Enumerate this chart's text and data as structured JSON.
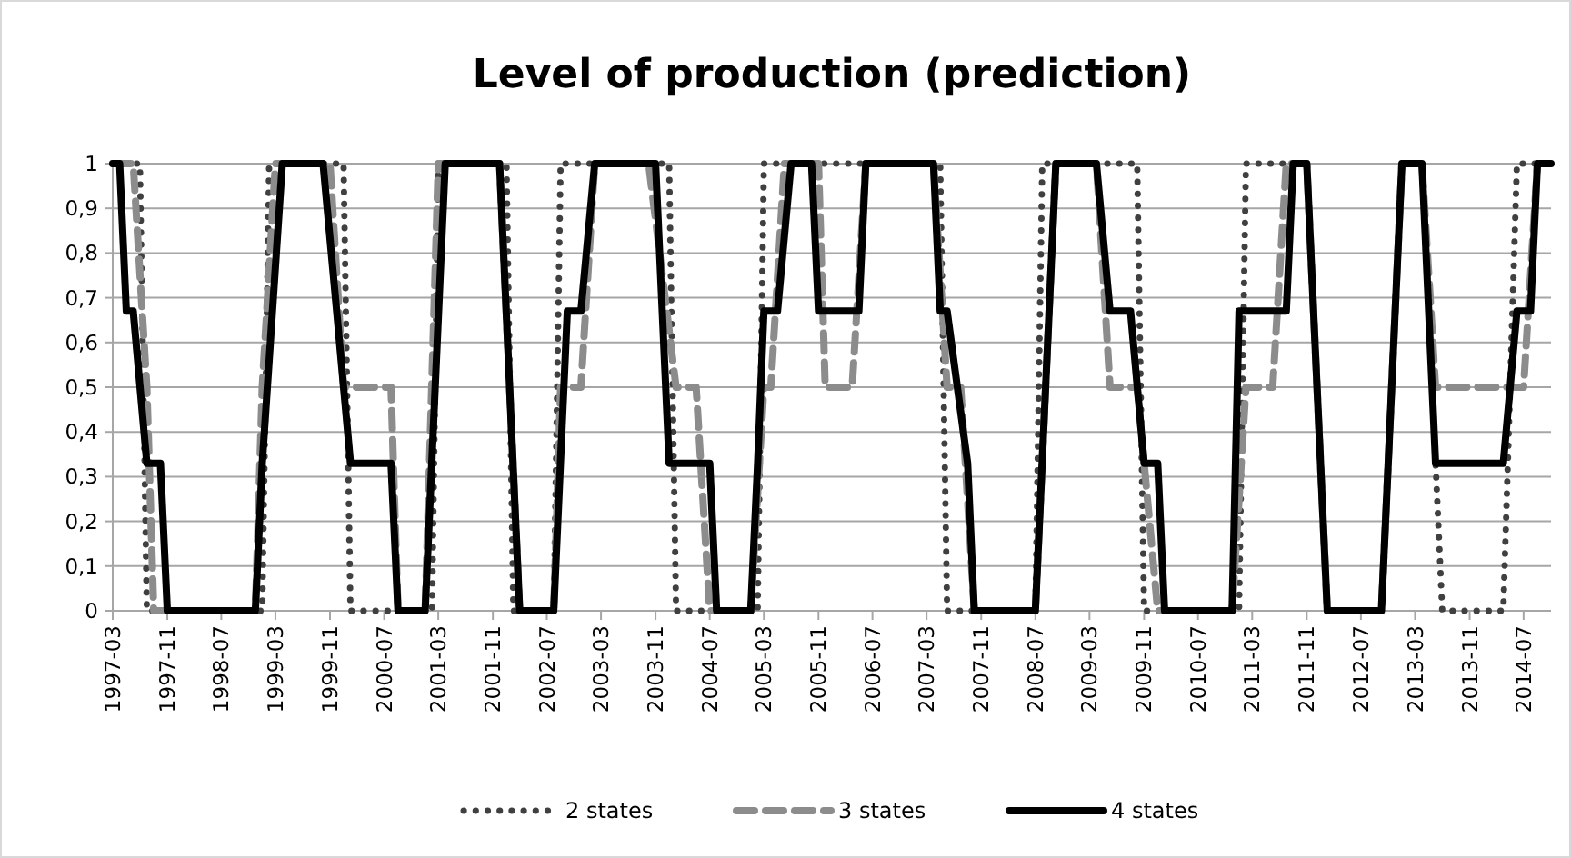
{
  "chart_data": {
    "type": "line",
    "title": "Level of production (prediction)",
    "xlim": [
      "1997-03",
      "2014-11"
    ],
    "xticks": [
      "1997-03",
      "1997-11",
      "1998-07",
      "1999-03",
      "1999-11",
      "2000-07",
      "2001-03",
      "2001-11",
      "2002-07",
      "2003-03",
      "2003-11",
      "2004-07",
      "2005-03",
      "2005-11",
      "2006-07",
      "2007-03",
      "2007-11",
      "2008-07",
      "2009-03",
      "2009-11",
      "2010-07",
      "2011-03",
      "2011-11",
      "2012-07",
      "2013-03",
      "2013-11",
      "2014-07"
    ],
    "ylim": [
      0,
      1
    ],
    "yticks": [
      0,
      {
        "value": 0.1,
        "label": "0,1"
      },
      {
        "value": 0.2,
        "label": "0,2"
      },
      {
        "value": 0.3,
        "label": "0,3"
      },
      {
        "value": 0.4,
        "label": "0,4"
      },
      {
        "value": 0.5,
        "label": "0,5"
      },
      {
        "value": 0.6,
        "label": "0,6"
      },
      {
        "value": 0.7,
        "label": "0,7"
      },
      {
        "value": 0.8,
        "label": "0,8"
      },
      {
        "value": 0.9,
        "label": "0,9"
      },
      1
    ],
    "grid": "y",
    "legend": "bottom",
    "series": [
      {
        "name": "2 states",
        "color": "#404040",
        "line_style": "dotted",
        "x": [
          "1997-03",
          "1997-07",
          "1997-08",
          "1999-01",
          "1999-02",
          "2000-01",
          "2000-02",
          "2001-02",
          "2001-03",
          "2002-01",
          "2002-02",
          "2002-08",
          "2002-09",
          "2004-01",
          "2004-02",
          "2005-02",
          "2005-03",
          "2007-05",
          "2007-06",
          "2008-07",
          "2008-08",
          "2009-10",
          "2009-11",
          "2011-01",
          "2011-02",
          "2011-11",
          "2012-02",
          "2012-10",
          "2013-01",
          "2013-04",
          "2013-07",
          "2014-04",
          "2014-06",
          "2014-11"
        ],
        "values": [
          1,
          1,
          0,
          0,
          1,
          1,
          0,
          0,
          1,
          1,
          0,
          0,
          1,
          1,
          0,
          0,
          1,
          1,
          0,
          0,
          1,
          1,
          0,
          0,
          1,
          1,
          0,
          0,
          1,
          1,
          0,
          0,
          1,
          1
        ]
      },
      {
        "name": "3 states",
        "color": "#8c8c8c",
        "line_style": "dashed",
        "x": [
          "1997-03",
          "1997-06",
          "1997-08",
          "1997-09",
          "1998-12",
          "1999-01",
          "1999-03",
          "1999-11",
          "2000-01",
          "2000-08",
          "2000-09",
          "2001-01",
          "2001-03",
          "2001-12",
          "2002-03",
          "2002-08",
          "2002-09",
          "2002-12",
          "2003-02",
          "2003-10",
          "2004-02",
          "2004-05",
          "2004-07",
          "2005-01",
          "2005-03",
          "2005-04",
          "2005-06",
          "2005-11",
          "2005-12",
          "2006-04",
          "2006-06",
          "2007-04",
          "2007-06",
          "2007-08",
          "2007-10",
          "2008-07",
          "2008-10",
          "2009-04",
          "2009-06",
          "2009-10",
          "2010-01",
          "2010-12",
          "2011-02",
          "2011-06",
          "2011-08",
          "2011-11",
          "2012-02",
          "2012-10",
          "2013-01",
          "2013-04",
          "2013-06",
          "2014-07",
          "2014-09",
          "2014-11"
        ],
        "values": [
          1,
          1,
          0.5,
          0,
          0,
          0.5,
          1,
          1,
          0.5,
          0.5,
          0,
          0,
          1,
          1,
          0,
          0,
          0.5,
          0.5,
          1,
          1,
          0.5,
          0.5,
          0,
          0,
          0.5,
          0.5,
          1,
          1,
          0.5,
          0.5,
          1,
          1,
          0.5,
          0.5,
          0,
          0,
          1,
          1,
          0.5,
          0.5,
          0,
          0,
          0.5,
          0.5,
          1,
          1,
          0,
          0,
          1,
          1,
          0.5,
          0.5,
          1,
          1
        ]
      },
      {
        "name": "4 states",
        "color": "#000000",
        "line_style": "solid",
        "x": [
          "1997-03",
          "1997-04",
          "1997-05",
          "1997-06",
          "1997-08",
          "1997-10",
          "1997-11",
          "1998-12",
          "1999-01",
          "1999-04",
          "1999-10",
          "1999-12",
          "2000-02",
          "2000-08",
          "2000-09",
          "2001-01",
          "2001-04",
          "2001-12",
          "2002-03",
          "2002-08",
          "2002-10",
          "2002-12",
          "2003-02",
          "2003-11",
          "2004-01",
          "2004-07",
          "2004-08",
          "2005-01",
          "2005-02",
          "2005-03",
          "2005-05",
          "2005-07",
          "2005-10",
          "2005-11",
          "2006-05",
          "2006-06",
          "2007-04",
          "2007-05",
          "2007-06",
          "2007-09",
          "2007-10",
          "2008-07",
          "2008-10",
          "2009-04",
          "2009-06",
          "2009-09",
          "2009-11",
          "2010-01",
          "2010-02",
          "2010-12",
          "2011-01",
          "2011-08",
          "2011-09",
          "2011-11",
          "2012-02",
          "2012-10",
          "2013-01",
          "2013-04",
          "2013-06",
          "2014-04",
          "2014-06",
          "2014-08",
          "2014-09",
          "2014-11"
        ],
        "values": [
          1,
          1,
          0.67,
          0.67,
          0.33,
          0.33,
          0,
          0,
          0.33,
          1,
          1,
          0.67,
          0.33,
          0.33,
          0,
          0,
          1,
          1,
          0,
          0,
          0.67,
          0.67,
          1,
          1,
          0.33,
          0.33,
          0,
          0,
          0.33,
          0.67,
          0.67,
          1,
          1,
          0.67,
          0.67,
          1,
          1,
          0.67,
          0.67,
          0.33,
          0,
          0,
          1,
          1,
          0.67,
          0.67,
          0.33,
          0.33,
          0,
          0,
          0.67,
          0.67,
          1,
          1,
          0,
          0,
          1,
          1,
          0.33,
          0.33,
          0.67,
          0.67,
          1,
          1
        ]
      }
    ]
  }
}
